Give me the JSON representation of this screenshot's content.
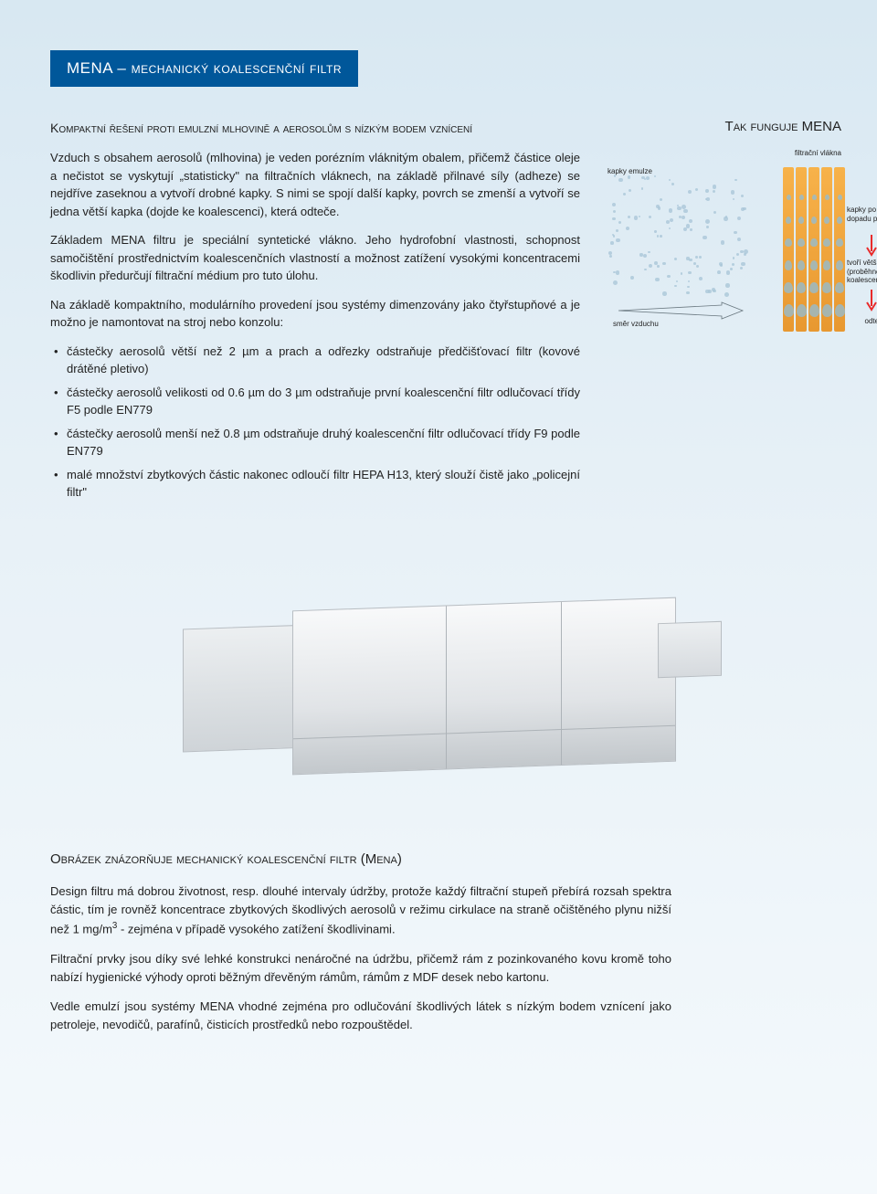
{
  "banner": {
    "title": "MENA – mechanický koalescenční filtr"
  },
  "subheading": "Kompaktní řešení proti emulzní mlhovině a aerosolům s nízkým bodem vznícení",
  "para1": "Vzduch s obsahem aerosolů (mlhovina) je veden porézním vláknitým obalem, přičemž částice oleje a nečistot se vyskytují „statisticky\" na filtračních vláknech, na základě přilnavé síly (adheze) se nejdříve zaseknou a vytvoří drobné kapky. S nimi se spojí další kapky, povrch se zmenší a vytvoří se jedna větší kapka (dojde ke koalescenci), která odteče.",
  "para2": "Základem MENA filtru je speciální syntetické vlákno. Jeho hydrofobní vlastnosti, schopnost samočištění prostřednictvím koalescenčních vlastností a možnost zatížení vysokými koncentracemi škodlivin předurčují filtrační médium pro tuto úlohu.",
  "para3": "Na základě kompaktního, modulárního provedení jsou systémy dimenzovány jako čtyřstupňové a je možno je namontovat na stroj nebo konzolu:",
  "bullets": [
    "částečky aerosolů větší než 2 µm a prach a odřezky odstraňuje předčišťovací filtr (kovové drátěné pletivo)",
    "částečky aerosolů velikosti od 0.6 µm do 3 µm odstraňuje první koalescenční filtr odlučovací třídy F5 podle EN779",
    "částečky aerosolů menší než 0.8 µm odstraňuje druhý koalescenční filtr odlučovací třídy F9 podle EN779",
    "malé množství zbytkových částic nakonec odloučí filtr HEPA H13, který slouží čistě jako „policejní filtr\""
  ],
  "diagram": {
    "heading": "Tak funguje MENA",
    "labels": {
      "fibers": "filtrační vlákna",
      "emulsion_drops": "kapky emulze",
      "impact_drops": "kapky po dopadu přilnou",
      "bigger_drops": "tvoří větší kapky (proběhne koalescence)",
      "drain": "odtečou",
      "airflow": "směr vzduchu"
    },
    "fiber_color_top": "#f7b24a",
    "fiber_color_bottom": "#e89830",
    "droplet_color": "#8fbdd9",
    "arrow_color": "#e92b2b",
    "fiber_count": 5
  },
  "lower": {
    "heading": "Obrázek znázorňuje mechanický koalescenční filtr (Mena)",
    "p1a": "Design filtru má dobrou životnost, resp. dlouhé intervaly údržby, protože každý filtrační stupeň přebírá rozsah spektra částic, tím je rovněž koncentrace zbytkových škodlivých aerosolů v režimu cirkulace na straně očištěného plynu nižší než 1 mg/m",
    "p1b": " - zejména v případě vysokého zatížení škodlivinami.",
    "p2": "Filtrační prvky jsou díky své lehké konstrukci nenáročné na údržbu, přičemž rám z pozinkovaného kovu kromě toho nabízí hygienické výhody oproti běžným dřevěným rámům, rámům z MDF desek nebo kartonu.",
    "p3": "Vedle emulzí jsou systémy MENA vhodné zejména pro odlučování škodlivých látek s nízkým bodem vznícení jako petroleje, nevodičů, parafínů, čisticích prostředků nebo rozpouštědel."
  },
  "colors": {
    "banner_bg": "#00579a",
    "text": "#222222"
  }
}
